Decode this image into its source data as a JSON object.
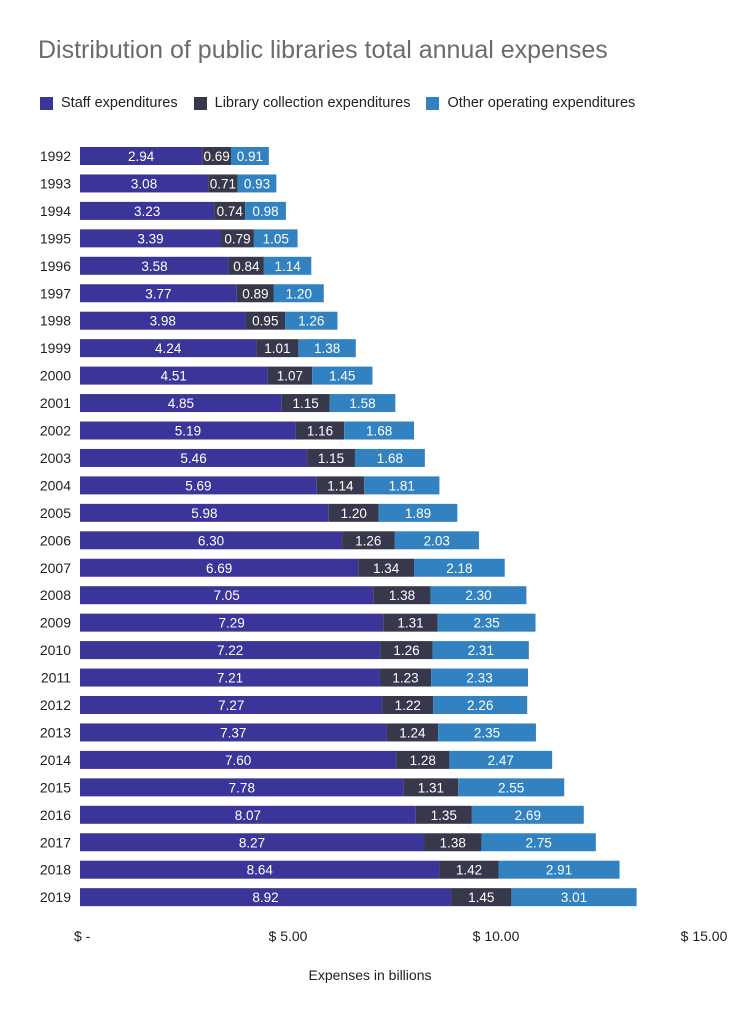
{
  "chart_data": {
    "type": "bar",
    "orientation": "horizontal",
    "stacked": true,
    "title": "Distribution of public libraries total annual expenses",
    "xlabel": "Expenses in billions",
    "ylabel": "",
    "xlim": [
      0,
      15
    ],
    "x_ticks": [
      0,
      5,
      10,
      15
    ],
    "x_tick_labels": [
      "$ -",
      "$ 5.00",
      "$ 10.00",
      "$ 15.00"
    ],
    "legend_position": "top-left",
    "grid": false,
    "categories": [
      "1992",
      "1993",
      "1994",
      "1995",
      "1996",
      "1997",
      "1998",
      "1999",
      "2000",
      "2001",
      "2002",
      "2003",
      "2004",
      "2005",
      "2006",
      "2007",
      "2008",
      "2009",
      "2010",
      "2011",
      "2012",
      "2013",
      "2014",
      "2015",
      "2016",
      "2017",
      "2018",
      "2019"
    ],
    "series": [
      {
        "name": "Staff expenditures",
        "color": "#3b3599",
        "values": [
          2.94,
          3.08,
          3.23,
          3.39,
          3.58,
          3.77,
          3.98,
          4.24,
          4.51,
          4.85,
          5.19,
          5.46,
          5.69,
          5.98,
          6.3,
          6.69,
          7.05,
          7.29,
          7.22,
          7.21,
          7.27,
          7.37,
          7.6,
          7.78,
          8.07,
          8.27,
          8.64,
          8.92
        ],
        "labels": [
          "2.94",
          "3.08",
          "3.23",
          "3.39",
          "3.58",
          "3.77",
          "3.98",
          "4.24",
          "4.51",
          "4.85",
          "5.19",
          "5.46",
          "5.69",
          "5.98",
          "6.30",
          "6.69",
          "7.05",
          "7.29",
          "7.22",
          "7.21",
          "7.27",
          "7.37",
          "7.60",
          "7.78",
          "8.07",
          "8.27",
          "8.64",
          "8.92"
        ]
      },
      {
        "name": "Library collection expenditures",
        "color": "#38384c",
        "values": [
          0.69,
          0.71,
          0.74,
          0.79,
          0.84,
          0.89,
          0.95,
          1.01,
          1.07,
          1.15,
          1.16,
          1.15,
          1.14,
          1.2,
          1.26,
          1.34,
          1.38,
          1.31,
          1.26,
          1.23,
          1.22,
          1.24,
          1.28,
          1.31,
          1.35,
          1.38,
          1.42,
          1.45
        ],
        "labels": [
          "0.69",
          "0.71",
          "0.74",
          "0.79",
          "0.84",
          "0.89",
          "0.95",
          "1.01",
          "1.07",
          "1.15",
          "1.16",
          "1.15",
          "1.14",
          "1.20",
          "1.26",
          "1.34",
          "1.38",
          "1.31",
          "1.26",
          "1.23",
          "1.22",
          "1.24",
          "1.28",
          "1.31",
          "1.35",
          "1.38",
          "1.42",
          "1.45"
        ]
      },
      {
        "name": "Other operating expenditures",
        "color": "#3282c1",
        "values": [
          0.91,
          0.93,
          0.98,
          1.05,
          1.14,
          1.2,
          1.26,
          1.38,
          1.45,
          1.58,
          1.68,
          1.68,
          1.81,
          1.89,
          2.03,
          2.18,
          2.3,
          2.35,
          2.31,
          2.33,
          2.26,
          2.35,
          2.47,
          2.55,
          2.69,
          2.75,
          2.91,
          3.01
        ],
        "labels": [
          "0.91",
          "0.93",
          "0.98",
          "1.05",
          "1.14",
          "1.20",
          "1.26",
          "1.38",
          "1.45",
          "1.58",
          "1.68",
          "1.68",
          "1.81",
          "1.89",
          "2.03",
          "2.18",
          "2.30",
          "2.35",
          "2.31",
          "2.33",
          "2.26",
          "2.35",
          "2.47",
          "2.55",
          "2.69",
          "2.75",
          "2.91",
          "3.01"
        ]
      }
    ]
  }
}
